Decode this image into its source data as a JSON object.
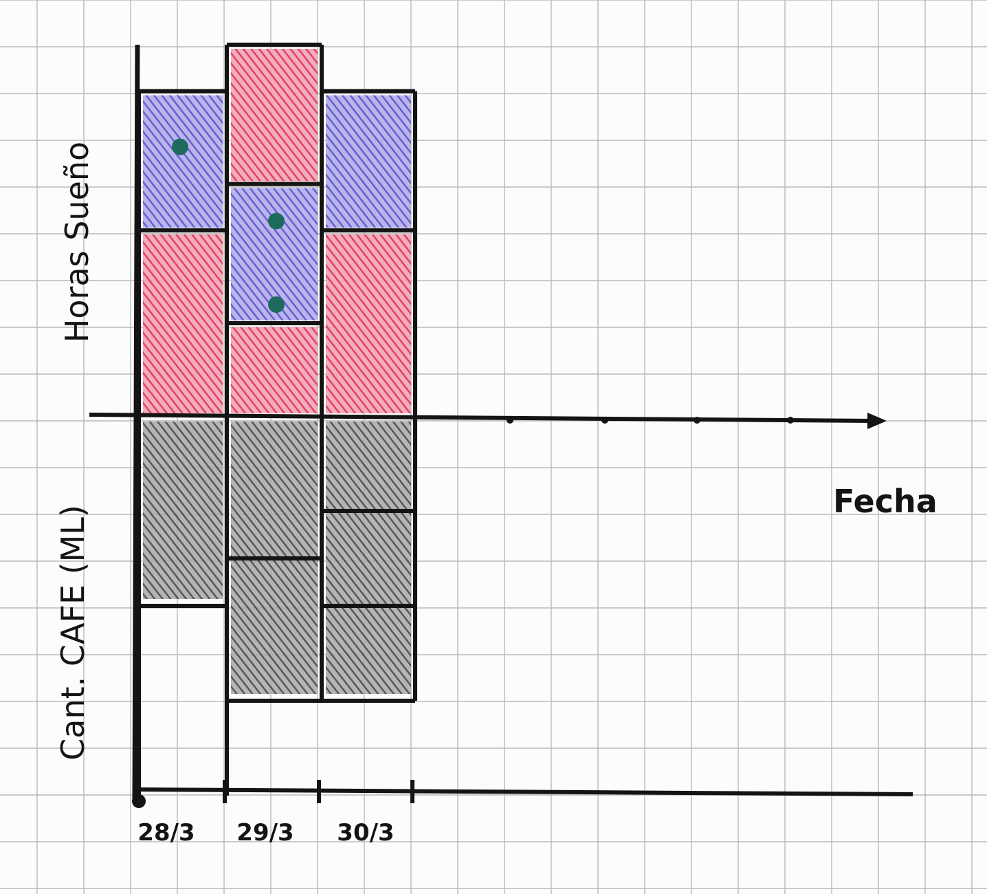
{
  "chart_data": {
    "type": "bar",
    "title": "",
    "xlabel": "Fecha",
    "ylabel_top": "Horas Sueño",
    "ylabel_bottom": "Cant. CAFE (ML)",
    "categories": [
      "28/3",
      "29/3",
      "30/3"
    ],
    "grid": true,
    "sleep_units": "cells",
    "coffee_units": "cells",
    "sleep_segments": [
      {
        "date": "28/3",
        "blocks": [
          {
            "color": "red",
            "from": 0,
            "to": 2
          },
          {
            "color": "blue",
            "from": 2,
            "to": 3.5
          }
        ],
        "total": 3.5,
        "dots": [
          2.9
        ]
      },
      {
        "date": "29/3",
        "blocks": [
          {
            "color": "red",
            "from": 0,
            "to": 1
          },
          {
            "color": "blue",
            "from": 1,
            "to": 2.5
          },
          {
            "color": "red",
            "from": 2.5,
            "to": 4
          }
        ],
        "total": 4,
        "dots": [
          1.2,
          2.1
        ]
      },
      {
        "date": "30/3",
        "blocks": [
          {
            "color": "red",
            "from": 0,
            "to": 2
          },
          {
            "color": "blue",
            "from": 2,
            "to": 3.5
          }
        ],
        "total": 3.5,
        "dots": []
      }
    ],
    "coffee_values": [
      {
        "date": "28/3",
        "cells": 2,
        "outline": 4
      },
      {
        "date": "29/3",
        "cells": 3,
        "dividers": [
          1.5
        ],
        "outline": 3
      },
      {
        "date": "30/3",
        "cells": 3,
        "dividers": [
          1,
          2
        ],
        "outline": 3
      }
    ]
  },
  "colors": {
    "sleep_red": "#e0305a",
    "sleep_blue": "#5a4fd0",
    "coffee_black": "#3a3a3a",
    "dot_green": "#1e6b5e",
    "grid": "#b9b9b9",
    "ink": "#141414"
  }
}
